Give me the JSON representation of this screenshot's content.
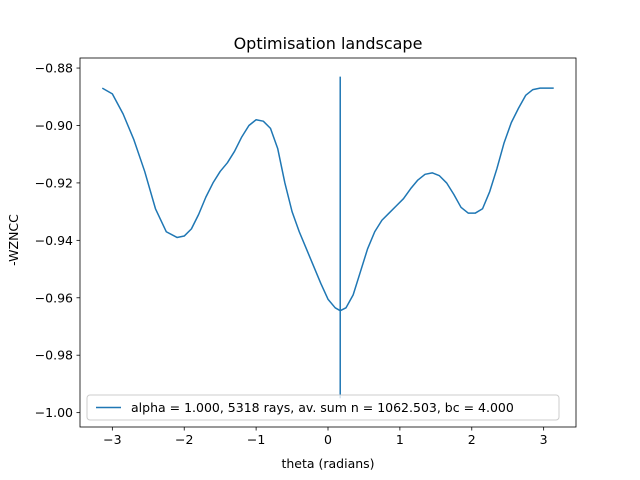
{
  "chart_data": {
    "type": "line",
    "title": "Optimisation landscape",
    "xlabel": "theta (radians)",
    "ylabel": "-WZNCC",
    "xlim": [
      -3.45,
      3.45
    ],
    "ylim": [
      -1.005,
      -0.8765
    ],
    "xticks": [
      -3,
      -2,
      -1,
      0,
      1,
      2,
      3
    ],
    "xtick_labels": [
      "−3",
      "−2",
      "−1",
      "0",
      "1",
      "2",
      "3"
    ],
    "yticks": [
      -1.0,
      -0.98,
      -0.96,
      -0.94,
      -0.92,
      -0.9,
      -0.88
    ],
    "ytick_labels": [
      "−1.00",
      "−0.98",
      "−0.96",
      "−0.94",
      "−0.92",
      "−0.90",
      "−0.88"
    ],
    "grid": false,
    "legend_position": "lower-center",
    "series": [
      {
        "name": "alpha = 1.000, 5318 rays, av. sum n = 1062.503, bc = 4.000",
        "color": "#1f77b4",
        "points": [
          [
            -3.14,
            -0.887
          ],
          [
            -3.0,
            -0.889
          ],
          [
            -2.85,
            -0.896
          ],
          [
            -2.7,
            -0.905
          ],
          [
            -2.55,
            -0.916
          ],
          [
            -2.4,
            -0.929
          ],
          [
            -2.25,
            -0.937
          ],
          [
            -2.1,
            -0.939
          ],
          [
            -2.0,
            -0.9385
          ],
          [
            -1.9,
            -0.936
          ],
          [
            -1.8,
            -0.931
          ],
          [
            -1.7,
            -0.925
          ],
          [
            -1.6,
            -0.92
          ],
          [
            -1.5,
            -0.916
          ],
          [
            -1.4,
            -0.913
          ],
          [
            -1.3,
            -0.909
          ],
          [
            -1.2,
            -0.904
          ],
          [
            -1.1,
            -0.9
          ],
          [
            -1.0,
            -0.898
          ],
          [
            -0.9,
            -0.8985
          ],
          [
            -0.8,
            -0.901
          ],
          [
            -0.7,
            -0.908
          ],
          [
            -0.6,
            -0.92
          ],
          [
            -0.5,
            -0.93
          ],
          [
            -0.4,
            -0.937
          ],
          [
            -0.3,
            -0.943
          ],
          [
            -0.2,
            -0.949
          ],
          [
            -0.1,
            -0.955
          ],
          [
            0.0,
            -0.9605
          ],
          [
            0.1,
            -0.9635
          ],
          [
            0.17,
            -0.9645
          ],
          [
            0.25,
            -0.9635
          ],
          [
            0.35,
            -0.959
          ],
          [
            0.45,
            -0.951
          ],
          [
            0.55,
            -0.943
          ],
          [
            0.65,
            -0.937
          ],
          [
            0.75,
            -0.933
          ],
          [
            0.85,
            -0.9305
          ],
          [
            0.95,
            -0.928
          ],
          [
            1.05,
            -0.9255
          ],
          [
            1.15,
            -0.922
          ],
          [
            1.25,
            -0.919
          ],
          [
            1.35,
            -0.917
          ],
          [
            1.45,
            -0.9165
          ],
          [
            1.55,
            -0.9175
          ],
          [
            1.65,
            -0.92
          ],
          [
            1.75,
            -0.924
          ],
          [
            1.85,
            -0.9285
          ],
          [
            1.95,
            -0.9305
          ],
          [
            2.05,
            -0.9305
          ],
          [
            2.15,
            -0.929
          ],
          [
            2.25,
            -0.923
          ],
          [
            2.35,
            -0.915
          ],
          [
            2.45,
            -0.906
          ],
          [
            2.55,
            -0.899
          ],
          [
            2.65,
            -0.894
          ],
          [
            2.75,
            -0.8895
          ],
          [
            2.85,
            -0.8875
          ],
          [
            2.95,
            -0.887
          ],
          [
            3.05,
            -0.887
          ],
          [
            3.14,
            -0.887
          ]
        ]
      }
    ],
    "vline": {
      "x": 0.17,
      "ymin": -0.995,
      "ymax": -0.883,
      "color": "#1f77b4"
    }
  }
}
